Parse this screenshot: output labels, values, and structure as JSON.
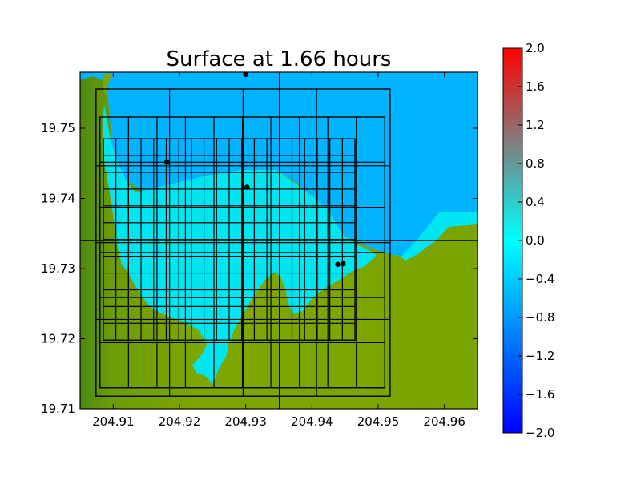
{
  "chart_data": {
    "type": "heatmap",
    "title": "Surface at 1.66 hours",
    "xlabel": "",
    "ylabel": "",
    "xlim": [
      204.905,
      204.965
    ],
    "ylim": [
      19.71,
      19.758
    ],
    "x_ticks": [
      204.91,
      204.92,
      204.93,
      204.94,
      204.95,
      204.96
    ],
    "x_tick_labels": [
      "204.91",
      "204.92",
      "204.93",
      "204.94",
      "204.95",
      "204.96"
    ],
    "y_ticks": [
      19.71,
      19.72,
      19.73,
      19.74,
      19.75
    ],
    "y_tick_labels": [
      "19.71",
      "19.72",
      "19.73",
      "19.74",
      "19.75"
    ],
    "colorbar": {
      "min": -2.0,
      "max": 2.0,
      "ticks": [
        2.0,
        1.6,
        1.2,
        0.8,
        0.4,
        0.0,
        -0.4,
        -0.8,
        -1.2,
        -1.6,
        -2.0
      ],
      "tick_labels": [
        "2.0",
        "1.6",
        "1.2",
        "0.8",
        "0.4",
        "0.0",
        "−0.4",
        "−0.8",
        "−1.2",
        "−1.6",
        "−2.0"
      ],
      "colors": [
        "#0000ff",
        "#00ffff",
        "#ff0000"
      ]
    },
    "colors": {
      "land": "#7ea600",
      "land_dark": "#4f8a10",
      "deep_water": "#00b4ff",
      "harbor_water": "#00e6f0",
      "grid_lines": "#000000"
    },
    "gauges": [
      {
        "x": 204.93,
        "y": 19.7577
      },
      {
        "x": 204.9181,
        "y": 19.7452
      },
      {
        "x": 204.9302,
        "y": 19.7416
      },
      {
        "x": 204.9439,
        "y": 19.7306
      },
      {
        "x": 204.9447,
        "y": 19.7307
      }
    ],
    "amr_patches": [
      {
        "x": [
          204.9074,
          204.9518
        ],
        "y": [
          19.7118,
          19.7556
        ]
      },
      {
        "x": [
          204.908,
          204.951
        ],
        "y": [
          19.713,
          19.7516
        ]
      },
      {
        "x": [
          204.9085,
          204.9465
        ],
        "y": [
          19.7198,
          19.7485
        ]
      }
    ],
    "coarse_lines": {
      "x": [
        204.9351
      ],
      "y": [
        19.734
      ]
    }
  }
}
